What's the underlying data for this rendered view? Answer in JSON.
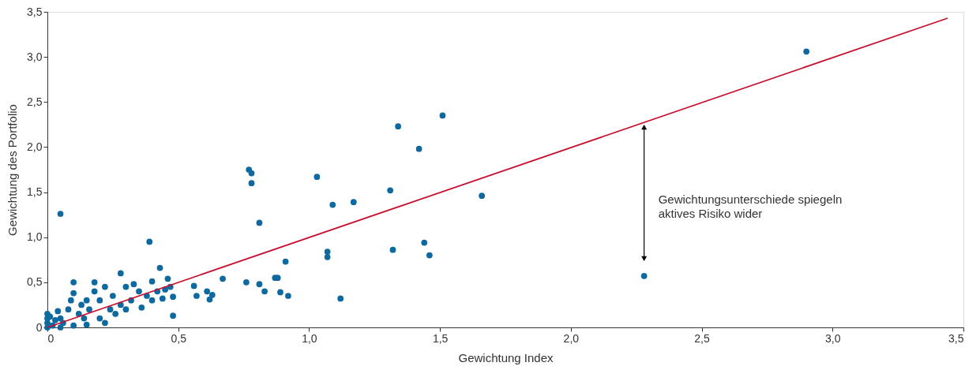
{
  "chart_data": {
    "type": "scatter",
    "xlabel": "Gewichtung Index",
    "ylabel": "Gewichtung des Portfolio",
    "xlim": [
      0,
      3.5
    ],
    "ylim": [
      0,
      3.5
    ],
    "xticks": [
      {
        "value": 0,
        "label": "0"
      },
      {
        "value": 0.5,
        "label": "0,5"
      },
      {
        "value": 1,
        "label": "1,0"
      },
      {
        "value": 1.5,
        "label": "1,5"
      },
      {
        "value": 2,
        "label": "2,0"
      },
      {
        "value": 2.5,
        "label": "2,5"
      },
      {
        "value": 3,
        "label": "3,0"
      },
      {
        "value": 3.5,
        "label": "3,5"
      }
    ],
    "yticks": [
      {
        "value": 0,
        "label": "0"
      },
      {
        "value": 0.5,
        "label": "0,5"
      },
      {
        "value": 1,
        "label": "1,0"
      },
      {
        "value": 1.5,
        "label": "1,5"
      },
      {
        "value": 2,
        "label": "2,0"
      },
      {
        "value": 2.5,
        "label": "2,5"
      },
      {
        "value": 3,
        "label": "3,0"
      },
      {
        "value": 3.5,
        "label": "3,5"
      }
    ],
    "grid": false,
    "legend": false,
    "annotations": [
      "Gewichtungsunterschiede spiegeln\naktives Risiko wider"
    ],
    "series": [
      {
        "color": "#0e6a9e",
        "marker": "circle",
        "x": [
          2.9,
          1.51,
          1.34,
          1.42,
          0.77,
          0.78,
          0.78,
          1.03,
          1.31,
          1.66,
          1.17,
          1.09,
          0.81,
          0.05,
          0.39,
          1.07,
          1.07,
          1.44,
          1.32,
          1.46,
          0.91,
          2.28,
          0.43,
          0.67,
          0.87,
          0.88,
          0.76,
          0.81,
          0.56,
          0.28,
          0.4,
          0.46,
          0.83,
          0.89,
          0.92,
          1.12,
          0.61,
          0.63,
          0.62,
          0.57,
          0.48,
          0.48,
          0.47,
          0.0,
          0.0,
          0.0,
          0.0,
          0.01,
          0.02,
          0.03,
          0.04,
          0.05,
          0.06,
          0.08,
          0.09,
          0.1,
          0.1,
          0.12,
          0.13,
          0.14,
          0.15,
          0.16,
          0.18,
          0.18,
          0.2,
          0.2,
          0.22,
          0.22,
          0.24,
          0.25,
          0.26,
          0.28,
          0.3,
          0.3,
          0.32,
          0.33,
          0.35,
          0.36,
          0.38,
          0.4,
          0.42,
          0.44,
          0.45,
          0.05,
          0.1,
          0.15
        ],
        "values": [
          3.06,
          2.35,
          2.23,
          1.98,
          1.75,
          1.71,
          1.6,
          1.67,
          1.52,
          1.46,
          1.39,
          1.36,
          1.16,
          1.26,
          0.95,
          0.84,
          0.78,
          0.94,
          0.86,
          0.8,
          0.73,
          0.57,
          0.66,
          0.54,
          0.55,
          0.55,
          0.5,
          0.48,
          0.46,
          0.6,
          0.51,
          0.54,
          0.4,
          0.39,
          0.35,
          0.32,
          0.4,
          0.36,
          0.31,
          0.35,
          0.34,
          0.13,
          0.45,
          0.15,
          0.1,
          0.05,
          0.0,
          0.12,
          0.02,
          0.08,
          0.18,
          0.1,
          0.05,
          0.2,
          0.3,
          0.38,
          0.5,
          0.15,
          0.25,
          0.1,
          0.3,
          0.2,
          0.4,
          0.5,
          0.1,
          0.3,
          0.45,
          0.05,
          0.2,
          0.35,
          0.15,
          0.25,
          0.45,
          0.2,
          0.3,
          0.48,
          0.4,
          0.22,
          0.35,
          0.3,
          0.4,
          0.32,
          0.42,
          0.0,
          0.02,
          0.03
        ]
      },
      {
        "type": "line",
        "color": "#c8102e",
        "line_style": "solid",
        "x": [
          0,
          3.44
        ],
        "values": [
          0,
          3.43
        ]
      }
    ]
  }
}
